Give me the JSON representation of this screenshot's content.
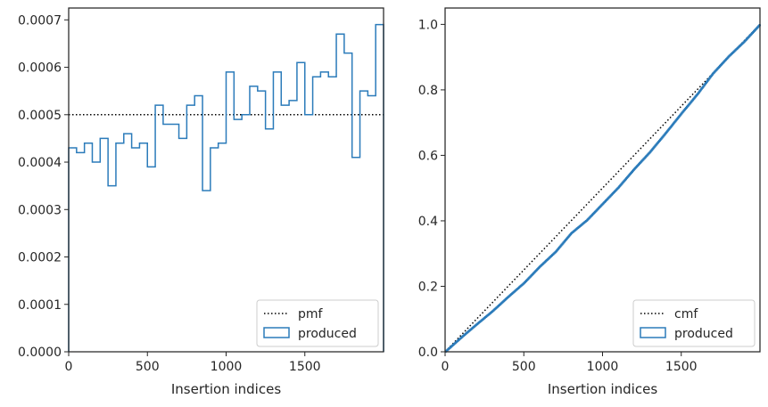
{
  "chart_data": [
    {
      "type": "histogram",
      "xlabel": "Insertion indices",
      "ylabel": "",
      "xlim": [
        0,
        2000
      ],
      "ylim": [
        0,
        0.000725
      ],
      "xticks": [
        0,
        500,
        1000,
        1500
      ],
      "xtick_labels": [
        "0",
        "500",
        "1000",
        "1500"
      ],
      "yticks": [
        0,
        0.0001,
        0.0002,
        0.0003,
        0.0004,
        0.0005,
        0.0006,
        0.0007
      ],
      "ytick_labels": [
        "0.0000",
        "0.0001",
        "0.0002",
        "0.0003",
        "0.0004",
        "0.0005",
        "0.0006",
        "0.0007"
      ],
      "legend_position": "lower-right",
      "series": [
        {
          "name": "pmf",
          "kind": "reference-line",
          "style": "dotted",
          "color": "#000000",
          "x": [
            0,
            2000
          ],
          "values": [
            0.0005,
            0.0005
          ]
        },
        {
          "name": "produced",
          "kind": "step-histogram",
          "color": "#2b7bba",
          "bin_edges": [
            0,
            50,
            100,
            150,
            200,
            250,
            300,
            350,
            400,
            450,
            500,
            550,
            600,
            650,
            700,
            750,
            800,
            850,
            900,
            950,
            1000,
            1050,
            1100,
            1150,
            1200,
            1250,
            1300,
            1350,
            1400,
            1450,
            1500,
            1550,
            1600,
            1650,
            1700,
            1750,
            1800,
            1850,
            1900,
            1950,
            2000
          ],
          "values": [
            0.00043,
            0.00042,
            0.00044,
            0.0004,
            0.00045,
            0.00035,
            0.00044,
            0.00046,
            0.00043,
            0.00044,
            0.00039,
            0.00052,
            0.00048,
            0.00048,
            0.00045,
            0.00052,
            0.00054,
            0.00034,
            0.00043,
            0.00044,
            0.00059,
            0.00049,
            0.0005,
            0.00056,
            0.00055,
            0.00047,
            0.00059,
            0.00052,
            0.00053,
            0.00061,
            0.0005,
            0.00058,
            0.00059,
            0.00058,
            0.00067,
            0.00063,
            0.00041,
            0.00055,
            0.00054,
            0.00069
          ]
        }
      ]
    },
    {
      "type": "line",
      "xlabel": "Insertion indices",
      "ylabel": "",
      "xlim": [
        0,
        2000
      ],
      "ylim": [
        0,
        1.05
      ],
      "xticks": [
        0,
        500,
        1000,
        1500
      ],
      "xtick_labels": [
        "0",
        "500",
        "1000",
        "1500"
      ],
      "yticks": [
        0,
        0.2,
        0.4,
        0.6,
        0.8,
        1.0
      ],
      "ytick_labels": [
        "0.0",
        "0.2",
        "0.4",
        "0.6",
        "0.8",
        "1.0"
      ],
      "legend_position": "lower-right",
      "series": [
        {
          "name": "cmf",
          "kind": "reference-line",
          "style": "dotted",
          "color": "#000000",
          "x": [
            0,
            2000
          ],
          "values": [
            0,
            1
          ]
        },
        {
          "name": "produced",
          "kind": "cumulative-step",
          "color": "#2b7bba",
          "x": [
            0,
            100,
            200,
            300,
            400,
            500,
            600,
            700,
            800,
            900,
            1000,
            1100,
            1200,
            1300,
            1400,
            1500,
            1600,
            1700,
            1800,
            1900,
            2000
          ],
          "values": [
            0,
            0.043,
            0.084,
            0.124,
            0.168,
            0.21,
            0.26,
            0.305,
            0.362,
            0.402,
            0.452,
            0.502,
            0.558,
            0.61,
            0.668,
            0.728,
            0.786,
            0.85,
            0.902,
            0.948,
            1.0
          ]
        }
      ]
    }
  ]
}
